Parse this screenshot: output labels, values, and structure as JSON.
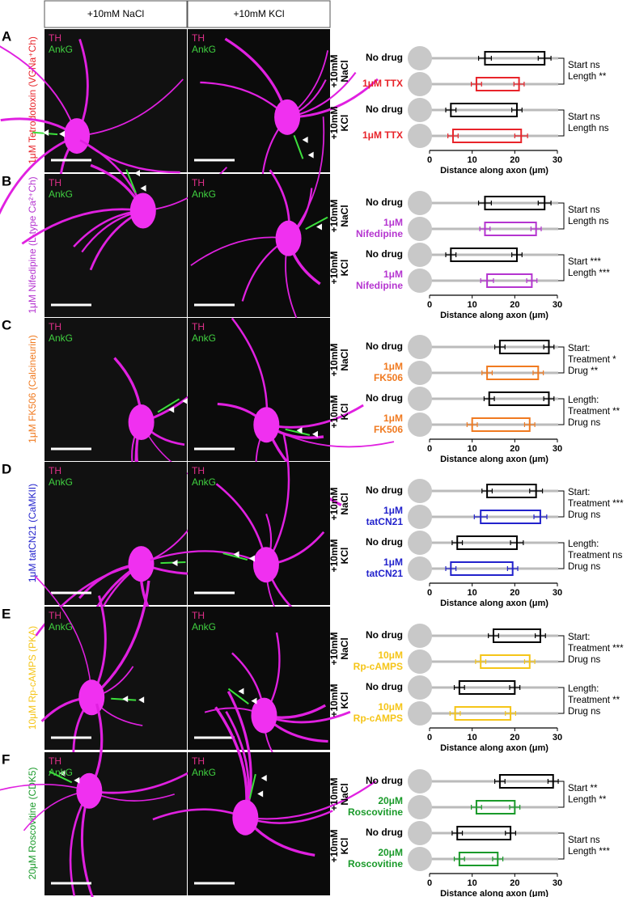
{
  "columns": [
    "+10mM NaCl",
    "+10mM KCl"
  ],
  "image_labels": [
    "TH",
    "AnkG"
  ],
  "chart_data": [
    {
      "type": "floating_bar",
      "panel": "A",
      "row_label": "1μM Tetrodotoxin (VGNa⁺Ch)",
      "color": "#e8242a",
      "groups": [
        [
          "+10mM",
          "NaCl"
        ],
        [
          "+10mM",
          "KCl"
        ]
      ],
      "categories": [
        [
          "No drug"
        ],
        [
          "1μM TTX"
        ],
        [
          "No drug"
        ],
        [
          "1μM TTX"
        ]
      ],
      "colors": [
        "#000000",
        "#e8242a",
        "#000000",
        "#e8242a"
      ],
      "start": [
        13,
        11,
        5,
        5.5
      ],
      "end": [
        27,
        21,
        20.5,
        21.5
      ],
      "start_err": [
        1.5,
        1.2,
        1.2,
        1.2
      ],
      "end_err": [
        1.5,
        1.2,
        1.2,
        1.5
      ],
      "annotations": [
        [
          "Start ns",
          "Length **"
        ],
        [
          "Start ns",
          "Length ns"
        ]
      ],
      "xlim": [
        0,
        30
      ],
      "xticks": [
        0,
        10,
        20,
        30
      ],
      "xlabel": "Distance along axon (μm)"
    },
    {
      "type": "floating_bar",
      "panel": "B",
      "row_label": "1μM Nifedipine (L-type Ca²⁺Ch)",
      "color": "#b535d0",
      "groups": [
        [
          "+10mM",
          "NaCl"
        ],
        [
          "+10mM",
          "KCl"
        ]
      ],
      "categories": [
        [
          "No drug"
        ],
        [
          "1μM",
          "Nifedipine"
        ],
        [
          "No drug"
        ],
        [
          "1μM",
          "Nifedipine"
        ]
      ],
      "colors": [
        "#000000",
        "#b535d0",
        "#000000",
        "#b535d0"
      ],
      "start": [
        13,
        13,
        5,
        13.5
      ],
      "end": [
        27,
        25,
        20.5,
        24
      ],
      "start_err": [
        1.5,
        1.2,
        1.2,
        1.5
      ],
      "end_err": [
        1.5,
        1.2,
        1.2,
        1.2
      ],
      "annotations": [
        [
          "Start ns",
          "Length ns"
        ],
        [
          "Start ***",
          "Length ***"
        ]
      ],
      "xlim": [
        0,
        30
      ],
      "xticks": [
        0,
        10,
        20,
        30
      ],
      "xlabel": "Distance along axon (μm)"
    },
    {
      "type": "floating_bar",
      "panel": "C",
      "row_label": "1μM FK506 (Calcineurin)",
      "color": "#f07a20",
      "groups": [
        [
          "+10mM",
          "NaCl"
        ],
        [
          "+10mM",
          "KCl"
        ]
      ],
      "categories": [
        [
          "No drug"
        ],
        [
          "1μM",
          "FK506"
        ],
        [
          "No drug"
        ],
        [
          "1μM",
          "FK506"
        ]
      ],
      "colors": [
        "#000000",
        "#f07a20",
        "#000000",
        "#f07a20"
      ],
      "start": [
        16.5,
        13.5,
        14,
        10
      ],
      "end": [
        28,
        25.5,
        28,
        23.5
      ],
      "start_err": [
        1.2,
        1.2,
        1.2,
        1.2
      ],
      "end_err": [
        1.2,
        1.2,
        1.2,
        1.2
      ],
      "annotations": [
        [
          "Start:",
          "Treatment *",
          "Drug **"
        ],
        [
          "Length:",
          "Treatment **",
          "Drug ns"
        ]
      ],
      "xlim": [
        0,
        30
      ],
      "xticks": [
        0,
        10,
        20,
        30
      ],
      "xlabel": "Distance along axon (μm)"
    },
    {
      "type": "floating_bar",
      "panel": "D",
      "row_label": "1μM tatCN21 (CaMKII)",
      "color": "#2222cc",
      "groups": [
        [
          "+10mM",
          "NaCl"
        ],
        [
          "+10mM",
          "KCl"
        ]
      ],
      "categories": [
        [
          "No drug"
        ],
        [
          "1μM",
          "tatCN21"
        ],
        [
          "No drug"
        ],
        [
          "1μM",
          "tatCN21"
        ]
      ],
      "colors": [
        "#000000",
        "#2222cc",
        "#000000",
        "#2222cc"
      ],
      "start": [
        13.5,
        12,
        6.5,
        5
      ],
      "end": [
        25,
        26,
        20.5,
        19.5
      ],
      "start_err": [
        1.2,
        1.5,
        1.2,
        1.2
      ],
      "end_err": [
        1.5,
        1.5,
        1.5,
        1.2
      ],
      "annotations": [
        [
          "Start:",
          "Treatment ***",
          "Drug ns"
        ],
        [
          "Length:",
          "Treatment ns",
          "Drug ns"
        ]
      ],
      "xlim": [
        0,
        30
      ],
      "xticks": [
        0,
        10,
        20,
        30
      ],
      "xlabel": "Distance along axon (μm)"
    },
    {
      "type": "floating_bar",
      "panel": "E",
      "row_label": "10μM Rp-cAMPS (PKA)",
      "color": "#f5c518",
      "groups": [
        [
          "+10mM",
          "NaCl"
        ],
        [
          "+10mM",
          "KCl"
        ]
      ],
      "categories": [
        [
          "No drug"
        ],
        [
          "10μM",
          "Rp-cAMPS"
        ],
        [
          "No drug"
        ],
        [
          "10μM",
          "Rp-cAMPS"
        ]
      ],
      "colors": [
        "#000000",
        "#f5c518",
        "#000000",
        "#f5c518"
      ],
      "start": [
        15,
        12,
        7,
        6
      ],
      "end": [
        26,
        23.5,
        20,
        19
      ],
      "start_err": [
        1.2,
        1.2,
        1.2,
        1.2
      ],
      "end_err": [
        1.2,
        1.2,
        1.2,
        1.2
      ],
      "annotations": [
        [
          "Start:",
          "Treatment ***",
          "Drug ns"
        ],
        [
          "Length:",
          "Treatment **",
          "Drug ns"
        ]
      ],
      "xlim": [
        0,
        30
      ],
      "xticks": [
        0,
        10,
        20,
        30
      ],
      "xlabel": "Distance along axon (μm)"
    },
    {
      "type": "floating_bar",
      "panel": "F",
      "row_label": "20μM Roscovitine (CDK5)",
      "color": "#1a9a2a",
      "groups": [
        [
          "+10mM",
          "NaCl"
        ],
        [
          "+10mM",
          "KCl"
        ]
      ],
      "categories": [
        [
          "No drug"
        ],
        [
          "20μM",
          "Roscovitine"
        ],
        [
          "No drug"
        ],
        [
          "20μM",
          "Roscovitine"
        ]
      ],
      "colors": [
        "#000000",
        "#1a9a2a",
        "#000000",
        "#1a9a2a"
      ],
      "start": [
        16.5,
        11,
        6.5,
        7
      ],
      "end": [
        29,
        20,
        19,
        16
      ],
      "start_err": [
        1.2,
        1.2,
        1.2,
        1.2
      ],
      "end_err": [
        1.2,
        1.2,
        1.2,
        1.2
      ],
      "annotations": [
        [
          "Start **",
          "Length **"
        ],
        [
          "Start ns",
          "Length ***"
        ]
      ],
      "xlim": [
        0,
        30
      ],
      "xticks": [
        0,
        10,
        20,
        30
      ],
      "xlabel": "Distance along axon (μm)"
    }
  ]
}
